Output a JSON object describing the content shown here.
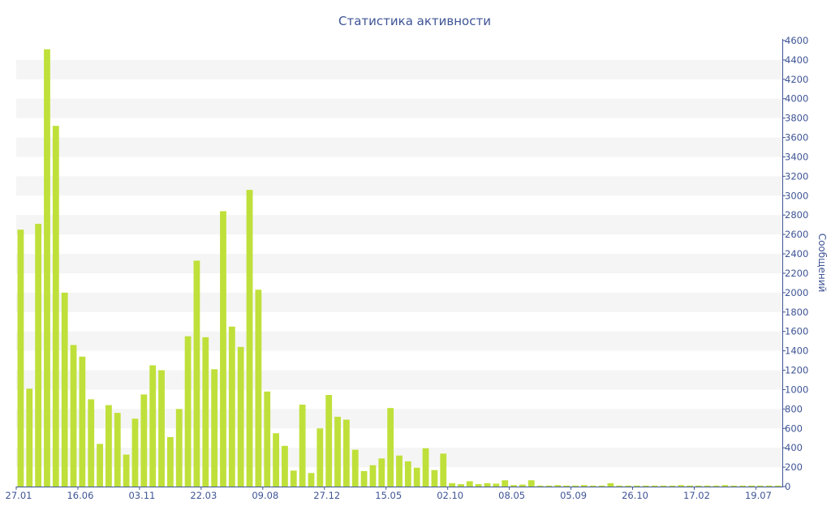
{
  "chart_data": {
    "type": "bar",
    "title": "Статистика активности",
    "xlabel": "",
    "ylabel": "Сообщений",
    "ylim": [
      0,
      4600
    ],
    "y_ticks": [
      0,
      200,
      400,
      600,
      800,
      1000,
      1200,
      1400,
      1600,
      1800,
      2000,
      2200,
      2400,
      2600,
      2800,
      3000,
      3200,
      3400,
      3600,
      3800,
      4000,
      4200,
      4400,
      4600
    ],
    "x_tick_labels": [
      "27.01",
      "16.06",
      "03.11",
      "22.03",
      "09.08",
      "27.12",
      "15.05",
      "02.10",
      "08.05",
      "05.09",
      "26.10",
      "17.02",
      "19.07"
    ],
    "x_tick_bar_index": [
      0,
      7,
      14,
      21,
      28,
      35,
      42,
      49,
      56,
      63,
      70,
      77,
      84
    ],
    "y_axis_position": "right",
    "grid": "horizontal alternating bands",
    "colors": {
      "bar": "#bfe03a",
      "text": "#3e5495",
      "band": "#f5f5f5"
    },
    "values": [
      2650,
      1010,
      2710,
      4510,
      3720,
      2000,
      1460,
      1340,
      900,
      440,
      840,
      760,
      330,
      700,
      950,
      1250,
      1200,
      510,
      800,
      1550,
      2330,
      1540,
      1210,
      2840,
      1650,
      1440,
      3060,
      2030,
      980,
      550,
      420,
      165,
      845,
      140,
      600,
      945,
      720,
      690,
      380,
      160,
      220,
      290,
      810,
      320,
      260,
      195,
      395,
      170,
      340,
      35,
      25,
      55,
      25,
      35,
      30,
      65,
      15,
      20,
      65,
      10,
      10,
      15,
      10,
      10,
      15,
      10,
      10,
      35,
      10,
      10,
      10,
      10,
      10,
      10,
      10,
      15,
      10,
      10,
      10,
      10,
      15,
      10,
      10,
      10,
      10,
      10,
      10
    ]
  }
}
